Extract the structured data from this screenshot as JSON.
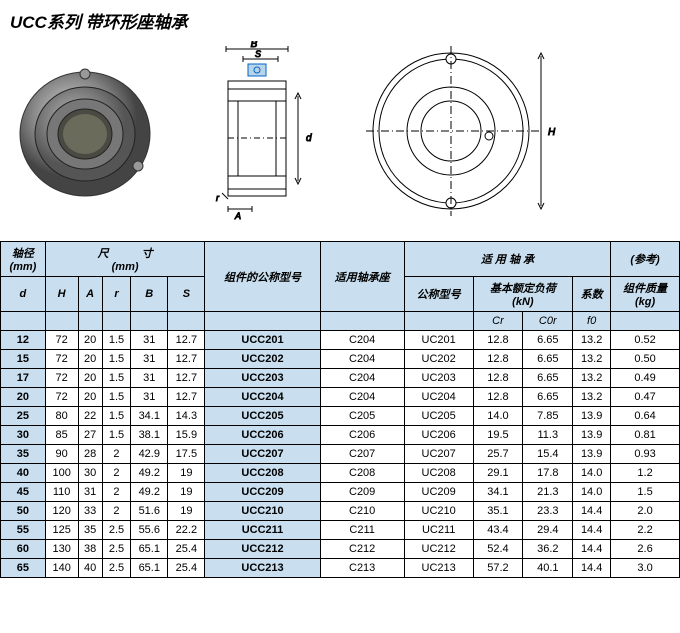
{
  "title": "UCC系列 带环形座轴承",
  "headers": {
    "shaft_dia": "轴径",
    "unit_mm": "(mm)",
    "dimensions": "尺　　　寸",
    "assembly_model": "组件的公称型号",
    "housing": "适用轴承座",
    "bearing": "适 用 轴 承",
    "model_no": "公称型号",
    "load": "基本额定负荷",
    "kn": "(kN)",
    "factor": "系数",
    "ref": "(参考)",
    "mass": "组件质量",
    "kg": "(kg)",
    "d": "d",
    "H": "H",
    "A": "A",
    "r": "r",
    "B": "B",
    "S": "S",
    "Cr": "Cr",
    "C0r": "C0r",
    "f0": "f0"
  },
  "dim_labels": {
    "B": "B",
    "S": "S",
    "A": "A",
    "r": "r",
    "d": "d",
    "H": "H"
  },
  "rows": [
    {
      "d": "12",
      "H": "72",
      "A": "20",
      "r": "1.5",
      "B": "31",
      "S": "12.7",
      "model": "UCC201",
      "hsg": "C204",
      "brg": "UC201",
      "Cr": "12.8",
      "C0r": "6.65",
      "f0": "13.2",
      "kg": "0.52"
    },
    {
      "d": "15",
      "H": "72",
      "A": "20",
      "r": "1.5",
      "B": "31",
      "S": "12.7",
      "model": "UCC202",
      "hsg": "C204",
      "brg": "UC202",
      "Cr": "12.8",
      "C0r": "6.65",
      "f0": "13.2",
      "kg": "0.50"
    },
    {
      "d": "17",
      "H": "72",
      "A": "20",
      "r": "1.5",
      "B": "31",
      "S": "12.7",
      "model": "UCC203",
      "hsg": "C204",
      "brg": "UC203",
      "Cr": "12.8",
      "C0r": "6.65",
      "f0": "13.2",
      "kg": "0.49"
    },
    {
      "d": "20",
      "H": "72",
      "A": "20",
      "r": "1.5",
      "B": "31",
      "S": "12.7",
      "model": "UCC204",
      "hsg": "C204",
      "brg": "UC204",
      "Cr": "12.8",
      "C0r": "6.65",
      "f0": "13.2",
      "kg": "0.47"
    },
    {
      "d": "25",
      "H": "80",
      "A": "22",
      "r": "1.5",
      "B": "34.1",
      "S": "14.3",
      "model": "UCC205",
      "hsg": "C205",
      "brg": "UC205",
      "Cr": "14.0",
      "C0r": "7.85",
      "f0": "13.9",
      "kg": "0.64"
    },
    {
      "d": "30",
      "H": "85",
      "A": "27",
      "r": "1.5",
      "B": "38.1",
      "S": "15.9",
      "model": "UCC206",
      "hsg": "C206",
      "brg": "UC206",
      "Cr": "19.5",
      "C0r": "11.3",
      "f0": "13.9",
      "kg": "0.81"
    },
    {
      "d": "35",
      "H": "90",
      "A": "28",
      "r": "2",
      "B": "42.9",
      "S": "17.5",
      "model": "UCC207",
      "hsg": "C207",
      "brg": "UC207",
      "Cr": "25.7",
      "C0r": "15.4",
      "f0": "13.9",
      "kg": "0.93"
    },
    {
      "d": "40",
      "H": "100",
      "A": "30",
      "r": "2",
      "B": "49.2",
      "S": "19",
      "model": "UCC208",
      "hsg": "C208",
      "brg": "UC208",
      "Cr": "29.1",
      "C0r": "17.8",
      "f0": "14.0",
      "kg": "1.2"
    },
    {
      "d": "45",
      "H": "110",
      "A": "31",
      "r": "2",
      "B": "49.2",
      "S": "19",
      "model": "UCC209",
      "hsg": "C209",
      "brg": "UC209",
      "Cr": "34.1",
      "C0r": "21.3",
      "f0": "14.0",
      "kg": "1.5"
    },
    {
      "d": "50",
      "H": "120",
      "A": "33",
      "r": "2",
      "B": "51.6",
      "S": "19",
      "model": "UCC210",
      "hsg": "C210",
      "brg": "UC210",
      "Cr": "35.1",
      "C0r": "23.3",
      "f0": "14.4",
      "kg": "2.0"
    },
    {
      "d": "55",
      "H": "125",
      "A": "35",
      "r": "2.5",
      "B": "55.6",
      "S": "22.2",
      "model": "UCC211",
      "hsg": "C211",
      "brg": "UC211",
      "Cr": "43.4",
      "C0r": "29.4",
      "f0": "14.4",
      "kg": "2.2"
    },
    {
      "d": "60",
      "H": "130",
      "A": "38",
      "r": "2.5",
      "B": "65.1",
      "S": "25.4",
      "model": "UCC212",
      "hsg": "C212",
      "brg": "UC212",
      "Cr": "52.4",
      "C0r": "36.2",
      "f0": "14.4",
      "kg": "2.6"
    },
    {
      "d": "65",
      "H": "140",
      "A": "40",
      "r": "2.5",
      "B": "65.1",
      "S": "25.4",
      "model": "UCC213",
      "hsg": "C213",
      "brg": "UC213",
      "Cr": "57.2",
      "C0r": "40.1",
      "f0": "14.4",
      "kg": "3.0"
    }
  ]
}
